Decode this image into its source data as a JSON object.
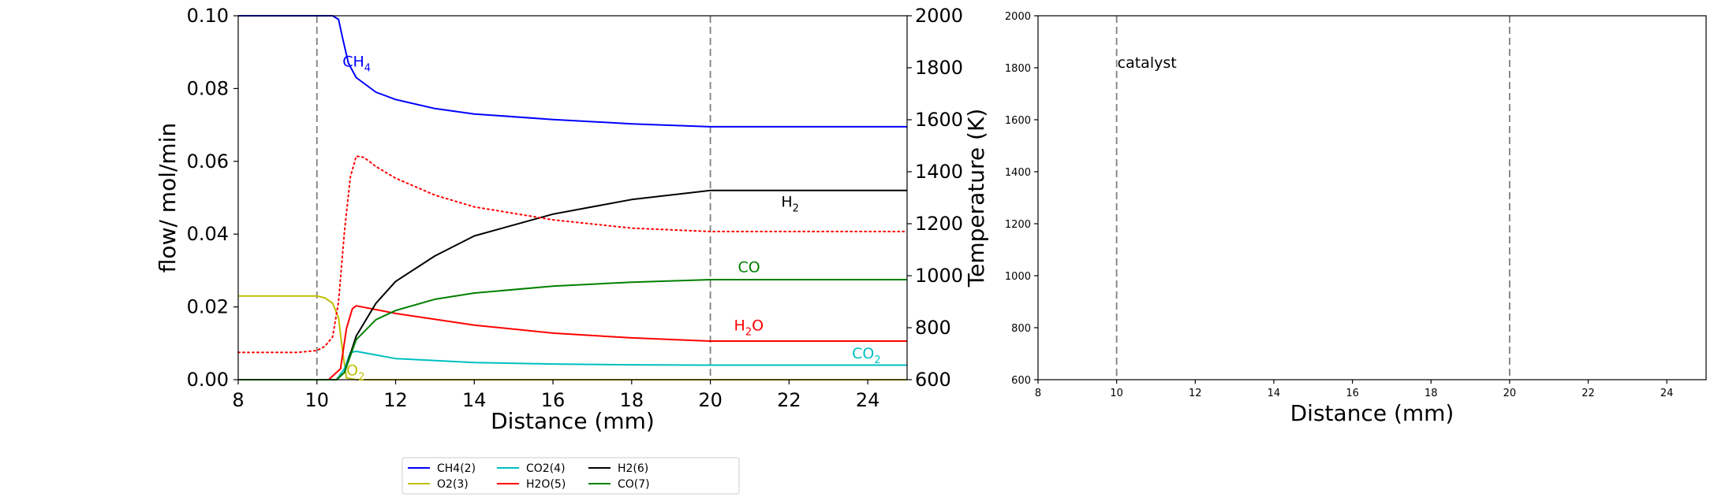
{
  "chart_data": [
    {
      "type": "line",
      "xlabel": "Distance (mm)",
      "ylabel": "flow/ mol/min",
      "y2label": "Temperature (K)",
      "xlim": [
        8,
        25
      ],
      "ylim": [
        0,
        0.1
      ],
      "y2lim": [
        600,
        2000
      ],
      "x_ticks": [
        "8",
        "10",
        "12",
        "14",
        "16",
        "18",
        "20",
        "22",
        "24"
      ],
      "y_ticks": [
        "0.00",
        "0.02",
        "0.04",
        "0.06",
        "0.08",
        "0.10"
      ],
      "y2_ticks": [
        "600",
        "800",
        "1000",
        "1200",
        "1400",
        "1600",
        "1800",
        "2000"
      ],
      "vlines": [
        10,
        20
      ],
      "grid": false,
      "series": [
        {
          "name": "CH4(2)",
          "color": "#0000ff",
          "style": "solid",
          "x": [
            8,
            10,
            10.4,
            10.55,
            10.65,
            10.8,
            11,
            11.5,
            12,
            13,
            14,
            16,
            18,
            20,
            25
          ],
          "y": [
            0.1,
            0.1,
            0.1,
            0.099,
            0.094,
            0.087,
            0.083,
            0.079,
            0.077,
            0.0745,
            0.073,
            0.0715,
            0.0703,
            0.0695,
            0.0695
          ]
        },
        {
          "name": "O2(3)",
          "color": "#bfbf00",
          "style": "solid",
          "x": [
            8,
            10,
            10.2,
            10.4,
            10.55,
            10.65,
            10.75,
            11,
            25
          ],
          "y": [
            0.023,
            0.023,
            0.0225,
            0.021,
            0.017,
            0.008,
            0.0005,
            0,
            0
          ]
        },
        {
          "name": "CO2(4)",
          "color": "#00bfbf",
          "style": "solid",
          "x": [
            8,
            10.5,
            10.7,
            10.85,
            11,
            12,
            14,
            16,
            18,
            20,
            25
          ],
          "y": [
            0,
            0,
            0.003,
            0.0075,
            0.0078,
            0.0058,
            0.0047,
            0.0043,
            0.0041,
            0.004,
            0.004
          ]
        },
        {
          "name": "H2O(5)",
          "color": "#ff0000",
          "style": "solid",
          "x": [
            8,
            10.3,
            10.6,
            10.75,
            10.9,
            11,
            12,
            14,
            16,
            18,
            20,
            25
          ],
          "y": [
            0,
            0,
            0.003,
            0.014,
            0.0195,
            0.0203,
            0.0182,
            0.015,
            0.0128,
            0.0115,
            0.0106,
            0.0106
          ]
        },
        {
          "name": "H2(6)",
          "color": "#000000",
          "style": "solid",
          "x": [
            8,
            10.5,
            10.7,
            11,
            11.5,
            12,
            13,
            14,
            16,
            18,
            20,
            25
          ],
          "y": [
            0,
            0,
            0.002,
            0.012,
            0.021,
            0.027,
            0.034,
            0.0395,
            0.0455,
            0.0495,
            0.052,
            0.052
          ]
        },
        {
          "name": "CO(7)",
          "color": "#008000",
          "style": "solid",
          "x": [
            8,
            10.5,
            10.7,
            11,
            11.5,
            12,
            13,
            14,
            16,
            18,
            20,
            25
          ],
          "y": [
            0,
            0,
            0.002,
            0.011,
            0.0165,
            0.019,
            0.0221,
            0.0238,
            0.0257,
            0.0268,
            0.0275,
            0.0275
          ]
        },
        {
          "name": "",
          "color": "#ff0000",
          "style": "dotted",
          "axis": "y2",
          "x": [
            8,
            9.5,
            10,
            10.2,
            10.4,
            10.55,
            10.7,
            10.85,
            11,
            11.2,
            11.5,
            12,
            13,
            14,
            16,
            18,
            20,
            25
          ],
          "y": [
            705,
            705,
            712,
            728,
            765,
            900,
            1170,
            1380,
            1460,
            1455,
            1420,
            1375,
            1310,
            1265,
            1215,
            1183,
            1170,
            1170
          ]
        }
      ],
      "annotations": [
        {
          "text": "CH",
          "sub": "4",
          "color": "#0000ff",
          "x": 10.65,
          "y": 0.086
        },
        {
          "text": "H",
          "sub": "2",
          "color": "#000000",
          "x": 21.8,
          "y": 0.0475
        },
        {
          "text": "CO",
          "sub": "",
          "color": "#008000",
          "x": 20.7,
          "y": 0.0295
        },
        {
          "text": "H",
          "sub": "2",
          "post": "O",
          "color": "#ff0000",
          "x": 20.6,
          "y": 0.0135
        },
        {
          "text": "CO",
          "sub": "2",
          "color": "#00bfbf",
          "x": 23.6,
          "y": 0.0058
        },
        {
          "text": "O",
          "sub": "2",
          "color": "#bfbf00",
          "x": 10.75,
          "y": 0.0012
        }
      ],
      "legend": {
        "placement": "bottom",
        "entries": [
          {
            "label": "CH4(2)",
            "color": "#0000ff"
          },
          {
            "label": "O2(3)",
            "color": "#bfbf00"
          },
          {
            "label": "CO2(4)",
            "color": "#00bfbf"
          },
          {
            "label": "H2O(5)",
            "color": "#ff0000"
          },
          {
            "label": "H2(6)",
            "color": "#000000"
          },
          {
            "label": "CO(7)",
            "color": "#008000"
          }
        ]
      }
    },
    {
      "type": "line",
      "xlabel": "Distance (mm)",
      "xlim": [
        8,
        25
      ],
      "ylim": [
        600,
        2000
      ],
      "x_ticks": [
        "8",
        "10",
        "12",
        "14",
        "16",
        "18",
        "20",
        "22",
        "24"
      ],
      "y_ticks": [
        "600",
        "800",
        "1000",
        "1200",
        "1400",
        "1600",
        "1800",
        "2000"
      ],
      "vlines": [
        10,
        20
      ],
      "grid": false,
      "series": [],
      "annotations": [
        {
          "text": "catalyst",
          "x": 10,
          "y": 1800
        }
      ]
    }
  ]
}
